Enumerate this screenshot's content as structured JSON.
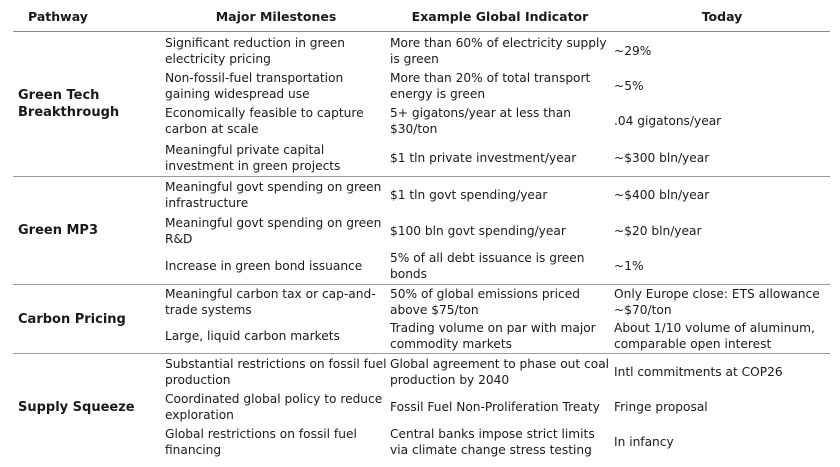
{
  "header": {
    "pathway": "Pathway",
    "milestones": "Major Milestones",
    "indicator": "Example Global Indicator",
    "today": "Today"
  },
  "groups": [
    {
      "pathway": "Green Tech Breakthrough",
      "rows": [
        {
          "milestone": "Significant reduction in green electricity pricing",
          "indicator": "More than 60% of electricity supply is green",
          "today": "~29%"
        },
        {
          "milestone": "Non-fossil-fuel transportation gaining widespread use",
          "indicator": "More than 20% of total transport energy is green",
          "today": "~5%"
        },
        {
          "milestone": "Economically feasible to capture carbon at scale",
          "indicator": "5+ gigatons/year at less than $30/ton",
          "today": ".04 gigatons/year"
        },
        {
          "milestone": "Meaningful private capital investment in green projects",
          "indicator": "$1 tln private investment/year",
          "today": "~$300 bln/year"
        }
      ]
    },
    {
      "pathway": "Green MP3",
      "rows": [
        {
          "milestone": "Meaningful govt spending on green infrastructure",
          "indicator": "$1 tln govt spending/year",
          "today": "~$400 bln/year"
        },
        {
          "milestone": "Meaningful govt spending on green R&D",
          "indicator": "$100 bln govt spending/year",
          "today": "~$20 bln/year"
        },
        {
          "milestone": "Increase in green bond issuance",
          "indicator": "5% of all debt issuance is green bonds",
          "today": "~1%"
        }
      ]
    },
    {
      "pathway": "Carbon Pricing",
      "rows": [
        {
          "milestone": "Meaningful carbon tax or cap-and-trade systems",
          "indicator": "50% of global emissions priced above $75/ton",
          "today": "Only Europe close: ETS allowance ~$70/ton"
        },
        {
          "milestone": "Large, liquid carbon markets",
          "indicator": "Trading volume on par with major commodity markets",
          "today": "About 1/10 volume of aluminum, comparable open interest"
        }
      ]
    },
    {
      "pathway": "Supply Squeeze",
      "rows": [
        {
          "milestone": "Substantial restrictions on fossil fuel production",
          "indicator": "Global agreement to phase out coal production by 2040",
          "today": "Intl commitments at COP26"
        },
        {
          "milestone": "Coordinated global policy to reduce exploration",
          "indicator": "Fossil Fuel Non-Proliferation Treaty",
          "today": "Fringe proposal"
        },
        {
          "milestone": "Global restrictions on fossil fuel financing",
          "indicator": "Central banks impose strict limits via climate change stress testing",
          "today": "In infancy"
        }
      ]
    }
  ]
}
